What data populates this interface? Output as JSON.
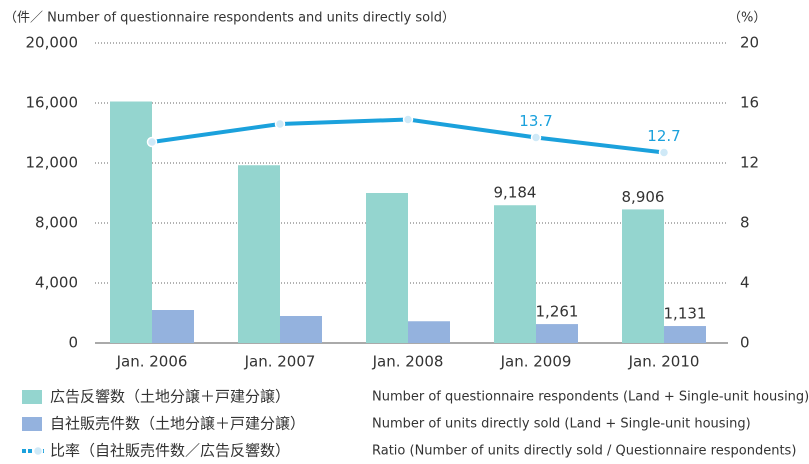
{
  "chart_data": {
    "type": "bar_line",
    "y_label": "（件／ Number of questionnaire respondents and units directly sold）",
    "y2_label": "（%）",
    "categories": [
      "Jan. 2006",
      "Jan. 2007",
      "Jan. 2008",
      "Jan. 2009",
      "Jan. 2010"
    ],
    "series": [
      {
        "name": "広告反響数（土地分譲＋戸建分譲）",
        "name_en": "Number of questionnaire respondents (Land + Single-unit housing)",
        "type": "bar",
        "color": "#94d5cf",
        "values": [
          16100,
          11850,
          10000,
          9184,
          8906
        ],
        "value_labels": [
          null,
          null,
          null,
          "9,184",
          "8,906"
        ]
      },
      {
        "name": "自社販売件数（土地分譲＋戸建分譲）",
        "name_en": "Number of units directly sold (Land + Single-unit housing)",
        "type": "bar",
        "color": "#94b2de",
        "values": [
          2200,
          1800,
          1450,
          1261,
          1131
        ],
        "value_labels": [
          null,
          null,
          null,
          "1,261",
          "1,131"
        ]
      },
      {
        "name": "比率（自社販売件数／広告反響数）",
        "name_en": "Ratio (Number of units directly sold / Questionnaire respondents)",
        "type": "line",
        "axis": "y2",
        "color": "#1ba1dc",
        "values": [
          13.4,
          14.6,
          14.9,
          13.7,
          12.7
        ],
        "value_labels": [
          null,
          null,
          null,
          "13.7",
          "12.7"
        ]
      }
    ],
    "ylim": [
      0,
      20000
    ],
    "yticks": [
      0,
      {
        "value": 4000,
        "label": "4,000"
      },
      {
        "value": 8000,
        "label": "8,000"
      },
      {
        "value": 12000,
        "label": "12,000"
      },
      {
        "value": 16000,
        "label": "16,000"
      },
      {
        "value": 20000,
        "label": "20,000"
      }
    ],
    "y2lim": [
      0,
      20
    ],
    "y2ticks": [
      0,
      4,
      8,
      12,
      16,
      20
    ],
    "grid": true
  }
}
